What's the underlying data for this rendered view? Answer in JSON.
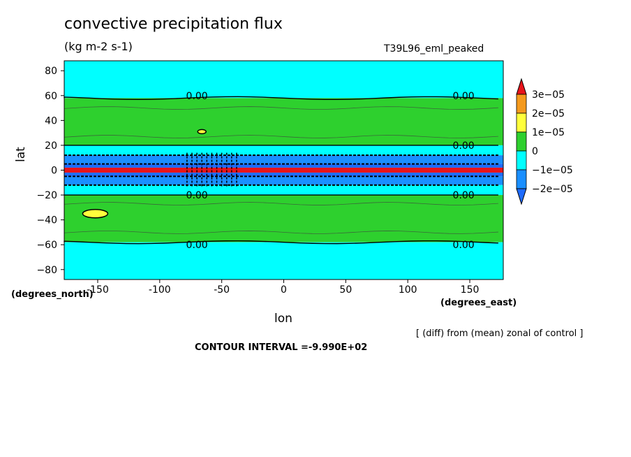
{
  "title": "convective precipitation flux",
  "units": "(kg m-2 s-1)",
  "run_label": "T39L96_eml_peaked",
  "xlabel": "lon",
  "ylabel": "lat",
  "y_units_label": "(degrees_north)",
  "x_units_label": "(degrees_east)",
  "diff_note": "[ (diff) from (mean) zonal of control ]",
  "contour_interval": "CONTOUR INTERVAL =-9.990E+02",
  "chart_data": {
    "type": "heatmap",
    "title": "convective precipitation flux",
    "units": "(kg m-2 s-1)",
    "xlabel": "lon",
    "ylabel": "lat",
    "xlim": [
      -177,
      177
    ],
    "ylim": [
      -88,
      88
    ],
    "x_ticks": [
      -150,
      -100,
      -50,
      0,
      50,
      100,
      150
    ],
    "x_tick_labels": [
      "-150",
      "-100",
      "-50",
      "0",
      "50",
      "100",
      "150"
    ],
    "y_ticks": [
      80,
      60,
      40,
      20,
      0,
      -20,
      -40,
      -60,
      -80
    ],
    "y_tick_labels": [
      "80",
      "60",
      "40",
      "20",
      "0",
      "−20",
      "−40",
      "−60",
      "−80"
    ],
    "colorbar": {
      "levels": [
        "3e−05",
        "2e−05",
        "1e−05",
        "0",
        "−1e−05",
        "−2e−05"
      ],
      "colors": [
        "#e8141b",
        "#f59a1d",
        "#ffff3c",
        "#2ed02e",
        "#00ffff",
        "#1a8fff",
        "#1e6bff"
      ]
    },
    "bands": [
      {
        "lat_top": 88,
        "lat_bottom": 58,
        "color": "#00ffff"
      },
      {
        "lat_top": 58,
        "lat_bottom": 20,
        "color": "#2ed02e"
      },
      {
        "lat_top": 20,
        "lat_bottom": 12,
        "color": "#00ffff"
      },
      {
        "lat_top": 12,
        "lat_bottom": 5,
        "color": "#1a8fff"
      },
      {
        "lat_top": 5,
        "lat_bottom": 2,
        "color": "#1e6bff"
      },
      {
        "lat_top": 2,
        "lat_bottom": -2,
        "color": "#e8141b"
      },
      {
        "lat_top": -2,
        "lat_bottom": -5,
        "color": "#1e6bff"
      },
      {
        "lat_top": -5,
        "lat_bottom": -12,
        "color": "#1a8fff"
      },
      {
        "lat_top": -12,
        "lat_bottom": -20,
        "color": "#00ffff"
      },
      {
        "lat_top": -20,
        "lat_bottom": -58,
        "color": "#2ed02e"
      },
      {
        "lat_top": -58,
        "lat_bottom": -88,
        "color": "#00ffff"
      }
    ],
    "contour_labels": [
      {
        "text": "0.00",
        "lon": -70,
        "lat": 60
      },
      {
        "text": "0.00",
        "lon": 145,
        "lat": 60
      },
      {
        "text": "0.00",
        "lon": 145,
        "lat": 20
      },
      {
        "text": "0.00",
        "lon": -70,
        "lat": -20
      },
      {
        "text": "0.00",
        "lon": 145,
        "lat": -20
      },
      {
        "text": "0.00",
        "lon": -70,
        "lat": -60
      },
      {
        "text": "0.00",
        "lon": 145,
        "lat": -60
      }
    ],
    "highlights": [
      {
        "lon": -152,
        "lat": -35,
        "color": "#ffff3c"
      },
      {
        "lon": -66,
        "lat": 31,
        "color": "#ffff3c"
      }
    ]
  }
}
